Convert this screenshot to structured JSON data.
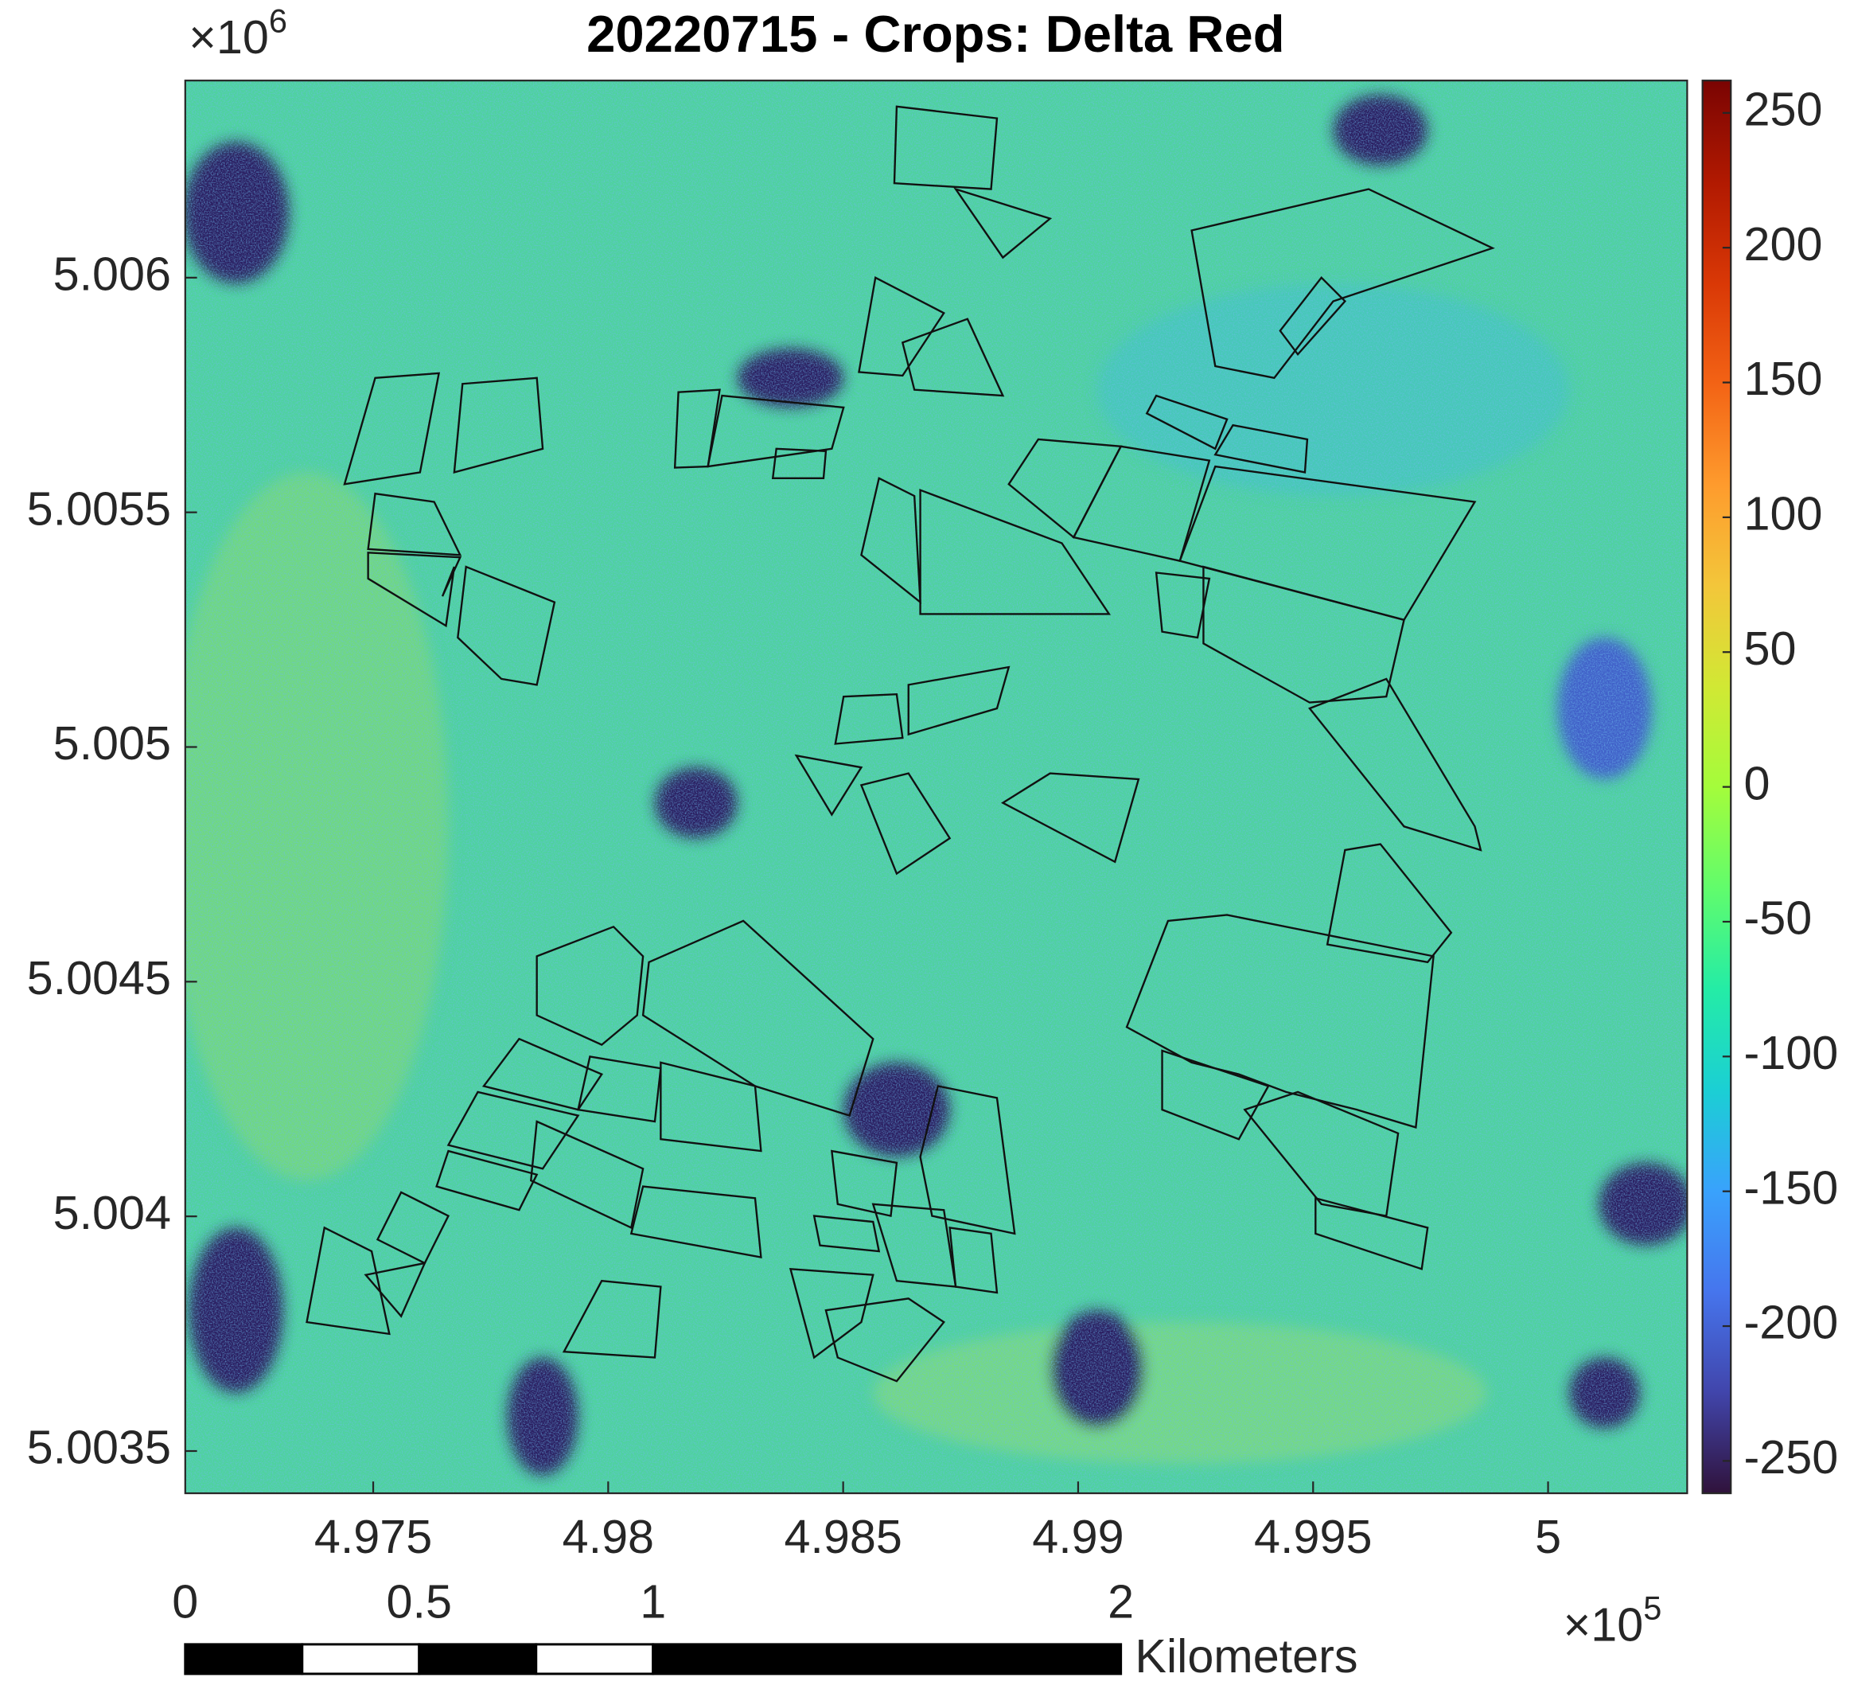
{
  "chart_data": {
    "type": "heatmap",
    "title": "20220715 - Crops: Delta Red",
    "xlim": [
      4.971,
      5.00296
    ],
    "xticks": [
      4.975,
      4.98,
      4.985,
      4.99,
      4.995,
      5
    ],
    "x_multiplier": "×10",
    "x_exponent": "5",
    "ylim": [
      5.00341,
      5.00642
    ],
    "yticks": [
      5.006,
      5.0055,
      5.005,
      5.0045,
      5.004,
      5.0035
    ],
    "y_multiplier": "×10",
    "y_exponent": "6",
    "clim": [
      -262,
      262
    ],
    "cticks": [
      -250,
      -200,
      -150,
      -100,
      -50,
      0,
      50,
      100,
      150,
      200,
      250
    ],
    "colormap": [
      "#30123b",
      "#4145ab",
      "#4675ed",
      "#39a2fc",
      "#1bcfd4",
      "#24eca6",
      "#61fc6c",
      "#a4fc3b",
      "#d1e834",
      "#f3c63a",
      "#fe9b2d",
      "#f36315",
      "#d93806",
      "#b11901",
      "#7a0402"
    ],
    "scalebar": {
      "ticks": [
        0,
        0.5,
        1,
        2
      ],
      "segments": [
        0,
        0.25,
        0.5,
        0.75,
        1,
        2
      ],
      "unit": "Kilometers",
      "colors": [
        "#000000",
        "#ffffff",
        "#000000",
        "#ffffff",
        "#000000"
      ]
    }
  }
}
